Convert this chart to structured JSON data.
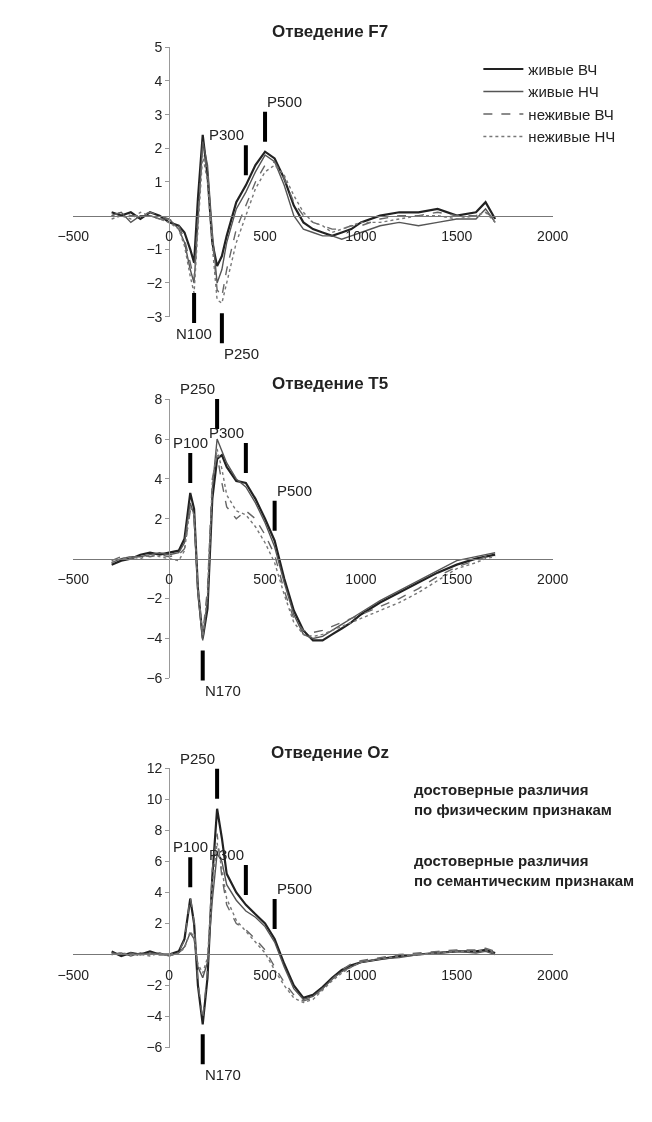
{
  "chart_data": [
    {
      "type": "line",
      "title": "Отведение F7",
      "xlim": [
        -500,
        2000
      ],
      "xticks": [
        -500,
        0,
        500,
        1000,
        1500,
        2000
      ],
      "ylim": [
        -3,
        5
      ],
      "yticks": [
        -3,
        -2,
        -1,
        1,
        2,
        3,
        4,
        5
      ],
      "legend": "top right",
      "marker": "none",
      "x": [
        -300,
        -250,
        -200,
        -150,
        -100,
        -50,
        0,
        50,
        80,
        110,
        130,
        150,
        175,
        200,
        225,
        250,
        275,
        300,
        350,
        400,
        450,
        500,
        550,
        600,
        650,
        700,
        750,
        800,
        850,
        900,
        950,
        1000,
        1100,
        1200,
        1300,
        1400,
        1500,
        1600,
        1650,
        1700
      ],
      "series": [
        {
          "name": "живые ВЧ",
          "color": "#222222",
          "line_style": "solid",
          "values": [
            0.1,
            0.0,
            0.1,
            -0.1,
            0.1,
            0.0,
            -0.2,
            -0.3,
            -0.5,
            -1.0,
            -1.4,
            0.5,
            2.4,
            1.2,
            -0.8,
            -1.5,
            -1.2,
            -0.6,
            0.4,
            0.9,
            1.5,
            1.9,
            1.7,
            1.1,
            0.3,
            -0.2,
            -0.4,
            -0.5,
            -0.6,
            -0.5,
            -0.4,
            -0.2,
            0.0,
            0.1,
            0.1,
            0.2,
            0.0,
            0.1,
            0.4,
            -0.1
          ]
        },
        {
          "name": "живые НЧ",
          "color": "#555555",
          "line_style": "solid",
          "values": [
            0.0,
            0.1,
            -0.2,
            0.0,
            0.0,
            -0.1,
            -0.1,
            -0.4,
            -0.8,
            -1.6,
            -2.0,
            -0.2,
            2.2,
            1.5,
            -0.5,
            -2.0,
            -1.6,
            -0.8,
            0.2,
            0.7,
            1.3,
            1.8,
            1.6,
            0.9,
            0.0,
            -0.4,
            -0.5,
            -0.6,
            -0.6,
            -0.7,
            -0.6,
            -0.5,
            -0.3,
            -0.2,
            -0.3,
            -0.2,
            -0.1,
            -0.1,
            0.2,
            -0.2
          ]
        },
        {
          "name": "неживые ВЧ",
          "color": "#666666",
          "line_style": "dashed",
          "values": [
            0.0,
            0.1,
            0.0,
            0.0,
            0.1,
            0.0,
            -0.1,
            -0.3,
            -0.7,
            -1.4,
            -1.9,
            0.0,
            2.0,
            1.3,
            -0.7,
            -2.2,
            -2.4,
            -1.6,
            -0.4,
            0.3,
            1.0,
            1.5,
            1.6,
            1.1,
            0.4,
            0.0,
            -0.2,
            -0.3,
            -0.4,
            -0.4,
            -0.3,
            -0.3,
            -0.1,
            0.0,
            0.0,
            0.1,
            0.0,
            0.0,
            0.1,
            -0.1
          ]
        },
        {
          "name": "неживые НЧ",
          "color": "#777777",
          "line_style": "dotted",
          "values": [
            -0.1,
            0.0,
            -0.1,
            0.1,
            0.0,
            -0.1,
            -0.2,
            -0.4,
            -0.9,
            -1.8,
            -2.3,
            -0.4,
            1.8,
            1.0,
            -0.9,
            -2.5,
            -2.6,
            -2.0,
            -0.8,
            0.0,
            0.8,
            1.3,
            1.5,
            1.2,
            0.6,
            0.1,
            -0.2,
            -0.3,
            -0.5,
            -0.4,
            -0.3,
            -0.2,
            -0.2,
            -0.1,
            0.0,
            0.0,
            -0.1,
            0.0,
            0.1,
            -0.2
          ]
        }
      ],
      "annotations": [
        {
          "text": "N100",
          "x": 130,
          "y": -2.0
        },
        {
          "text": "P250",
          "x": 275,
          "y": -2.6
        },
        {
          "text": "P300",
          "x": 400,
          "y": 0.9
        },
        {
          "text": "P500",
          "x": 500,
          "y": 1.9
        }
      ]
    },
    {
      "type": "line",
      "title": "Отведение T5",
      "xlim": [
        -500,
        2000
      ],
      "xticks": [
        -500,
        0,
        500,
        1000,
        1500,
        2000
      ],
      "ylim": [
        -6,
        8
      ],
      "yticks": [
        -6,
        -4,
        -2,
        2,
        4,
        6,
        8
      ],
      "legend": false,
      "marker": "none",
      "x": [
        -300,
        -250,
        -200,
        -150,
        -100,
        -50,
        0,
        50,
        80,
        110,
        130,
        150,
        175,
        200,
        225,
        250,
        275,
        300,
        350,
        400,
        450,
        500,
        550,
        600,
        650,
        700,
        750,
        800,
        850,
        900,
        950,
        1000,
        1100,
        1200,
        1300,
        1400,
        1500,
        1600,
        1650,
        1700
      ],
      "series": [
        {
          "color": "#222222",
          "line_style": "solid",
          "values": [
            -0.3,
            -0.1,
            0.0,
            0.2,
            0.3,
            0.2,
            0.3,
            0.4,
            1.0,
            3.3,
            2.5,
            -1.5,
            -4.0,
            -2.5,
            3.0,
            5.0,
            5.2,
            4.6,
            3.9,
            3.8,
            3.0,
            2.0,
            0.9,
            -1.0,
            -2.6,
            -3.6,
            -4.1,
            -4.1,
            -3.8,
            -3.5,
            -3.2,
            -2.8,
            -2.2,
            -1.7,
            -1.2,
            -0.7,
            -0.3,
            0.0,
            0.1,
            0.2
          ]
        },
        {
          "color": "#555555",
          "line_style": "solid",
          "values": [
            -0.2,
            0.0,
            0.1,
            0.1,
            0.2,
            0.3,
            0.2,
            0.3,
            0.8,
            2.8,
            2.2,
            -1.8,
            -4.1,
            -2.0,
            3.5,
            6.0,
            5.4,
            4.8,
            4.0,
            3.6,
            2.8,
            1.8,
            0.6,
            -1.2,
            -2.8,
            -3.8,
            -4.0,
            -3.9,
            -3.6,
            -3.3,
            -3.0,
            -2.7,
            -2.1,
            -1.6,
            -1.1,
            -0.6,
            -0.1,
            0.1,
            0.2,
            0.3
          ]
        },
        {
          "color": "#666666",
          "line_style": "dashed",
          "values": [
            -0.1,
            0.1,
            0.0,
            0.2,
            0.1,
            0.2,
            0.1,
            0.2,
            0.5,
            2.4,
            2.0,
            -1.6,
            -3.8,
            -1.5,
            4.0,
            5.2,
            3.8,
            2.6,
            2.0,
            2.4,
            2.0,
            1.2,
            0.2,
            -1.6,
            -3.0,
            -3.6,
            -3.7,
            -3.6,
            -3.4,
            -3.2,
            -3.0,
            -2.8,
            -2.4,
            -2.0,
            -1.5,
            -0.9,
            -0.4,
            -0.1,
            0.1,
            0.2
          ]
        },
        {
          "color": "#777777",
          "line_style": "dotted",
          "values": [
            -0.2,
            0.0,
            0.1,
            0.0,
            0.2,
            0.1,
            0.0,
            -0.1,
            0.4,
            2.6,
            2.2,
            -1.4,
            -3.9,
            -1.8,
            3.8,
            5.5,
            4.5,
            3.2,
            2.4,
            2.2,
            1.6,
            0.8,
            -0.2,
            -1.8,
            -3.2,
            -3.8,
            -3.9,
            -3.8,
            -3.6,
            -3.4,
            -3.2,
            -3.0,
            -2.6,
            -2.2,
            -1.7,
            -1.1,
            -0.5,
            -0.2,
            0.0,
            0.1
          ]
        }
      ],
      "annotations": [
        {
          "text": "P100",
          "x": 110,
          "y": 3.3
        },
        {
          "text": "P250",
          "x": 250,
          "y": 6.0
        },
        {
          "text": "P300",
          "x": 400,
          "y": 3.8
        },
        {
          "text": "P500",
          "x": 550,
          "y": 0.9
        },
        {
          "text": "N170",
          "x": 175,
          "y": -4.1
        }
      ]
    },
    {
      "type": "line",
      "title": "Отведение Oz",
      "xlim": [
        -500,
        2000
      ],
      "xticks": [
        -500,
        0,
        500,
        1000,
        1500,
        2000
      ],
      "ylim": [
        -6,
        12
      ],
      "yticks": [
        -6,
        -4,
        -2,
        2,
        4,
        6,
        8,
        10,
        12
      ],
      "legend": false,
      "marker": "none",
      "x": [
        -300,
        -250,
        -200,
        -150,
        -100,
        -50,
        0,
        50,
        80,
        110,
        130,
        150,
        175,
        200,
        225,
        250,
        275,
        300,
        350,
        400,
        450,
        500,
        550,
        600,
        650,
        700,
        750,
        800,
        850,
        900,
        950,
        1000,
        1100,
        1200,
        1300,
        1400,
        1500,
        1600,
        1650,
        1700
      ],
      "series": [
        {
          "color": "#222222",
          "line_style": "solid",
          "values": [
            0.2,
            -0.1,
            0.1,
            0.0,
            0.2,
            0.0,
            0.0,
            0.2,
            1.0,
            3.6,
            2.0,
            -2.0,
            -4.5,
            -1.5,
            5.0,
            9.4,
            7.5,
            5.2,
            4.0,
            3.2,
            2.6,
            2.0,
            1.0,
            -0.6,
            -2.0,
            -2.8,
            -2.6,
            -2.1,
            -1.5,
            -1.0,
            -0.7,
            -0.5,
            -0.3,
            -0.1,
            0.0,
            0.1,
            0.2,
            0.2,
            0.3,
            0.1
          ]
        },
        {
          "color": "#555555",
          "line_style": "solid",
          "values": [
            0.0,
            0.1,
            -0.1,
            0.1,
            0.0,
            0.1,
            -0.1,
            0.1,
            0.5,
            1.4,
            1.0,
            -0.8,
            -1.5,
            -0.5,
            3.5,
            6.5,
            6.0,
            4.5,
            3.5,
            2.8,
            2.4,
            1.8,
            0.8,
            -0.8,
            -2.2,
            -2.9,
            -2.7,
            -2.2,
            -1.6,
            -1.1,
            -0.8,
            -0.5,
            -0.3,
            -0.2,
            0.0,
            0.1,
            0.2,
            0.1,
            0.2,
            0.0
          ]
        },
        {
          "color": "#666666",
          "line_style": "dashed",
          "values": [
            0.1,
            0.0,
            0.1,
            -0.1,
            0.1,
            0.0,
            0.0,
            0.2,
            0.9,
            3.7,
            2.1,
            -1.8,
            -4.2,
            -1.0,
            5.5,
            7.8,
            5.0,
            3.2,
            2.0,
            1.6,
            1.0,
            0.3,
            -0.8,
            -1.8,
            -2.6,
            -3.0,
            -2.8,
            -2.2,
            -1.6,
            -1.0,
            -0.6,
            -0.4,
            -0.2,
            0.0,
            0.1,
            0.2,
            0.3,
            0.3,
            0.4,
            0.2
          ]
        },
        {
          "color": "#777777",
          "line_style": "dotted",
          "values": [
            0.0,
            0.1,
            0.0,
            0.0,
            -0.1,
            0.1,
            -0.1,
            0.1,
            0.4,
            1.5,
            1.1,
            -0.6,
            -1.2,
            -0.2,
            4.5,
            7.2,
            5.5,
            3.6,
            2.2,
            1.5,
            0.8,
            0.1,
            -1.0,
            -2.0,
            -2.8,
            -3.1,
            -2.9,
            -2.3,
            -1.7,
            -1.2,
            -0.8,
            -0.5,
            -0.3,
            -0.1,
            0.0,
            0.1,
            0.2,
            0.2,
            0.3,
            0.1
          ]
        }
      ],
      "annotations": [
        {
          "text": "P100",
          "x": 110,
          "y": 3.7
        },
        {
          "text": "P250",
          "x": 250,
          "y": 9.4
        },
        {
          "text": "P300",
          "x": 400,
          "y": 3.2
        },
        {
          "text": "P500",
          "x": 550,
          "y": 1.0
        },
        {
          "text": "N170",
          "x": 175,
          "y": -4.5
        },
        "достоверные различия\nпо физическим признакам",
        "достоверные различия\nпо семантическим признакам"
      ]
    }
  ]
}
